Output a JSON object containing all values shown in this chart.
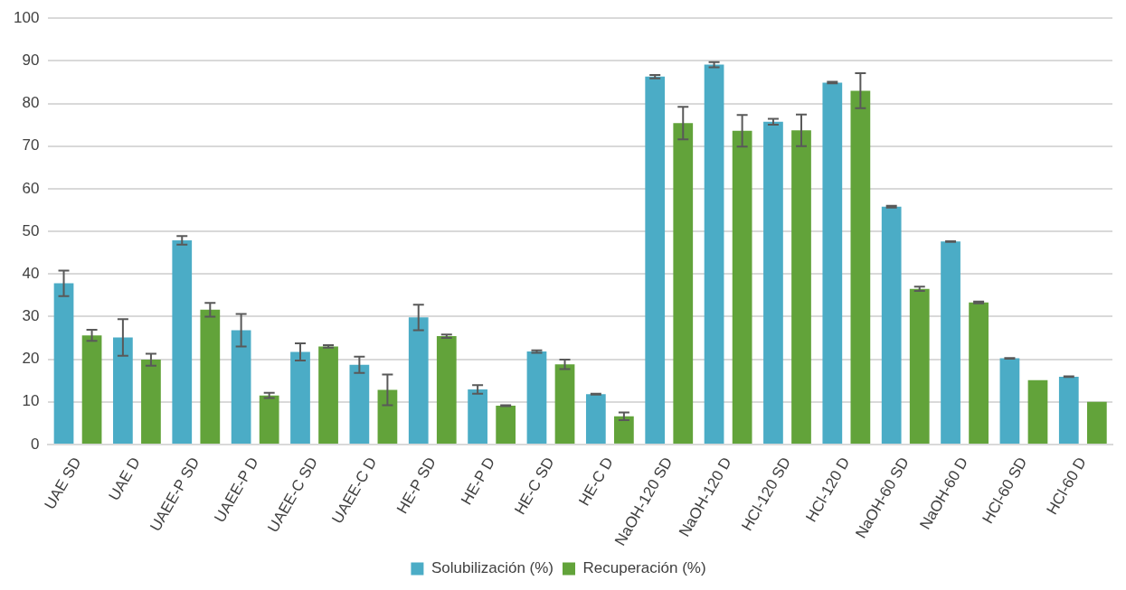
{
  "chart_data": {
    "type": "bar",
    "categories": [
      "UAE SD",
      "UAE D",
      "UAEE-P SD",
      "UAEE-P D",
      "UAEE-C SD",
      "UAEE-C D",
      "HE-P SD",
      "HE-P D",
      "HE-C SD",
      "HE-C D",
      "NaOH-120 SD",
      "NaOH-120 D",
      "HCl-120 SD",
      "HCl-120 D",
      "NaOH-60 SD",
      "NaOH-60 D",
      "HCl-60 SD",
      "HCl-60 D"
    ],
    "series": [
      {
        "name": "Solubilización (%)",
        "color": "#4bacc6",
        "values": [
          37.8,
          25.1,
          47.9,
          26.8,
          21.7,
          18.7,
          29.8,
          12.9,
          21.8,
          11.8,
          86.3,
          89.1,
          75.7,
          84.9,
          55.8,
          47.6,
          20.2,
          15.9
        ],
        "errors": [
          3,
          4.3,
          1,
          3.8,
          2,
          1.9,
          3,
          1,
          0.3,
          0.1,
          0.4,
          0.6,
          0.7,
          0.2,
          0.2,
          0.1,
          0.1,
          0.1
        ]
      },
      {
        "name": "Recuperación (%)",
        "color": "#62a33a",
        "values": [
          25.6,
          19.9,
          31.6,
          11.5,
          23.0,
          12.8,
          25.4,
          9.1,
          18.8,
          6.6,
          75.4,
          73.6,
          73.7,
          83.0,
          36.5,
          33.3,
          15.1,
          10.0
        ],
        "errors": [
          1.3,
          1.4,
          1.6,
          0.6,
          0.3,
          3.6,
          0.4,
          0.1,
          1.1,
          0.9,
          3.8,
          3.7,
          3.7,
          4.1,
          0.5,
          0.2,
          null,
          null
        ]
      }
    ],
    "ylim": [
      0,
      100
    ],
    "yticks": [
      0,
      10,
      20,
      30,
      40,
      50,
      60,
      70,
      80,
      90,
      100
    ],
    "grid": "y",
    "legend": "bottom"
  }
}
